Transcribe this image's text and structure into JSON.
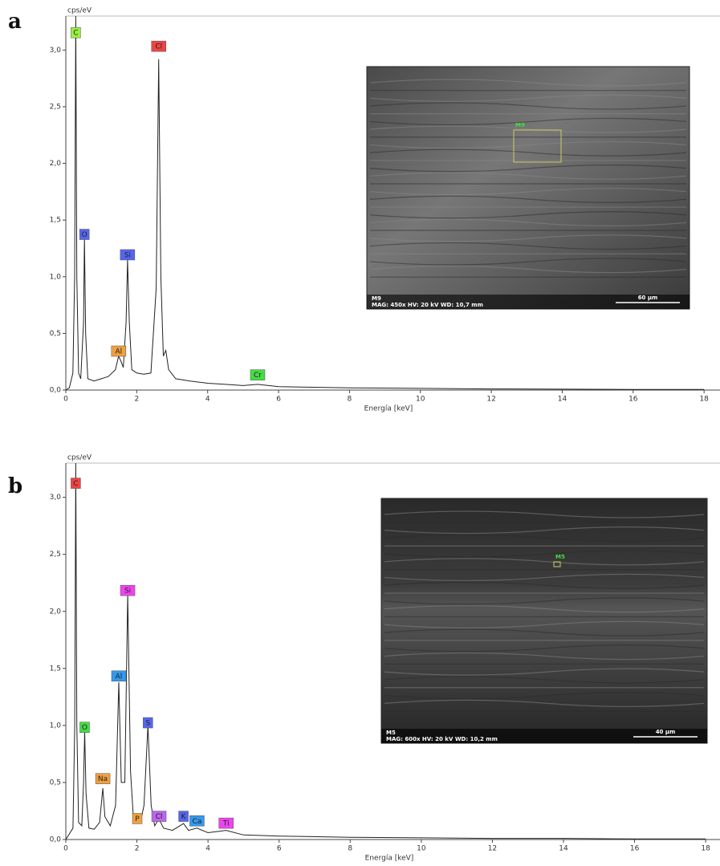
{
  "chart_data": [
    {
      "type": "line",
      "panel": "a",
      "y_label": "cps/eV",
      "x_label": "Energía [keV]",
      "color": "#222222",
      "xlim": [
        0,
        18.2
      ],
      "ylim": [
        0,
        3.3
      ],
      "xticks": [
        0,
        2,
        4,
        6,
        8,
        10,
        12,
        14,
        16,
        18
      ],
      "yticks": [
        {
          "value": 0,
          "label": "0,0"
        },
        {
          "value": 0.5,
          "label": "0,5"
        },
        {
          "value": 1,
          "label": "1,0"
        },
        {
          "value": 1.5,
          "label": "1,5"
        },
        {
          "value": 2,
          "label": "2,0"
        },
        {
          "value": 2.5,
          "label": "2,5"
        },
        {
          "value": 3,
          "label": "3,0"
        }
      ],
      "x": [
        0,
        0.1,
        0.2,
        0.25,
        0.28,
        0.31,
        0.36,
        0.42,
        0.5,
        0.525,
        0.56,
        0.62,
        0.8,
        1.0,
        1.2,
        1.4,
        1.49,
        1.56,
        1.62,
        1.7,
        1.74,
        1.79,
        1.86,
        2.0,
        2.2,
        2.4,
        2.55,
        2.62,
        2.68,
        2.75,
        2.82,
        2.9,
        3.1,
        3.5,
        4,
        4.5,
        5,
        5.41,
        6,
        7,
        8,
        10,
        12,
        14,
        16,
        18
      ],
      "values": [
        0,
        0.02,
        0.15,
        1.0,
        3.3,
        1.0,
        0.15,
        0.1,
        0.6,
        1.35,
        0.5,
        0.1,
        0.08,
        0.1,
        0.12,
        0.18,
        0.3,
        0.25,
        0.2,
        0.6,
        1.15,
        0.6,
        0.18,
        0.15,
        0.14,
        0.15,
        0.9,
        2.92,
        1.0,
        0.3,
        0.35,
        0.18,
        0.1,
        0.08,
        0.06,
        0.05,
        0.04,
        0.05,
        0.03,
        0.025,
        0.02,
        0.015,
        0.01,
        0.008,
        0.005,
        0.005
      ],
      "annotations": [
        {
          "text": "C",
          "x": 0.28,
          "y": 3.15,
          "color": "#99ee44"
        },
        {
          "text": "O",
          "x": 0.525,
          "y": 1.37,
          "color": "#5566ee"
        },
        {
          "text": "Si",
          "x": 1.74,
          "y": 1.19,
          "color": "#5566ee"
        },
        {
          "text": "Al",
          "x": 1.49,
          "y": 0.34,
          "color": "#f0a040"
        },
        {
          "text": "Cl",
          "x": 2.62,
          "y": 3.03,
          "color": "#ee4444"
        },
        {
          "text": "Cr",
          "x": 5.41,
          "y": 0.13,
          "color": "#44dd44"
        }
      ],
      "inset": {
        "site": "M9",
        "info": "MAG: 450x   HV: 20 kV   WD: 10,7 mm",
        "scale": "60 µm"
      }
    },
    {
      "type": "line",
      "panel": "b",
      "y_label": "cps/eV",
      "x_label": "Energía [keV]",
      "color": "#222222",
      "xlim": [
        0,
        18.2
      ],
      "ylim": [
        0,
        3.3
      ],
      "xticks": [
        0,
        2,
        4,
        6,
        8,
        10,
        12,
        14,
        16,
        18
      ],
      "yticks": [
        {
          "value": 0,
          "label": "0,0"
        },
        {
          "value": 0.5,
          "label": "0,5"
        },
        {
          "value": 1,
          "label": "1,0"
        },
        {
          "value": 1.5,
          "label": "1,5"
        },
        {
          "value": 2,
          "label": "2,0"
        },
        {
          "value": 2.5,
          "label": "2,5"
        },
        {
          "value": 3,
          "label": "3,0"
        }
      ],
      "x": [
        0,
        0.2,
        0.25,
        0.28,
        0.31,
        0.36,
        0.45,
        0.5,
        0.53,
        0.57,
        0.65,
        0.8,
        0.95,
        1.04,
        1.1,
        1.25,
        1.4,
        1.49,
        1.56,
        1.66,
        1.74,
        1.82,
        1.9,
        2.01,
        2.1,
        2.2,
        2.31,
        2.4,
        2.5,
        2.62,
        2.75,
        3.0,
        3.31,
        3.45,
        3.69,
        4.0,
        4.51,
        5,
        6,
        8,
        10,
        12,
        14,
        16,
        18
      ],
      "values": [
        0,
        0.1,
        1.0,
        3.3,
        1.0,
        0.15,
        0.12,
        0.5,
        0.95,
        0.4,
        0.1,
        0.09,
        0.15,
        0.45,
        0.2,
        0.12,
        0.3,
        1.38,
        0.5,
        0.5,
        2.15,
        0.6,
        0.2,
        0.18,
        0.15,
        0.3,
        1.0,
        0.3,
        0.12,
        0.18,
        0.1,
        0.08,
        0.14,
        0.08,
        0.1,
        0.06,
        0.08,
        0.04,
        0.03,
        0.02,
        0.015,
        0.01,
        0.01,
        0.005,
        0.005
      ],
      "annotations": [
        {
          "text": "C",
          "x": 0.28,
          "y": 3.12,
          "color": "#ee4444"
        },
        {
          "text": "O",
          "x": 0.53,
          "y": 0.98,
          "color": "#44dd44"
        },
        {
          "text": "Na",
          "x": 1.04,
          "y": 0.53,
          "color": "#f0a040"
        },
        {
          "text": "Al",
          "x": 1.49,
          "y": 1.43,
          "color": "#3399ee"
        },
        {
          "text": "Si",
          "x": 1.74,
          "y": 2.18,
          "color": "#ee44ee"
        },
        {
          "text": "S",
          "x": 2.31,
          "y": 1.02,
          "color": "#5566ee"
        },
        {
          "text": "P",
          "x": 2.01,
          "y": 0.18,
          "color": "#f0a040"
        },
        {
          "text": "Cl",
          "x": 2.62,
          "y": 0.2,
          "color": "#bb66ee"
        },
        {
          "text": "K",
          "x": 3.31,
          "y": 0.2,
          "color": "#5566ee"
        },
        {
          "text": "Ca",
          "x": 3.69,
          "y": 0.16,
          "color": "#3399ee"
        },
        {
          "text": "Ti",
          "x": 4.51,
          "y": 0.14,
          "color": "#ee44ee"
        }
      ],
      "inset": {
        "site": "M5",
        "info": "MAG: 600x   HV: 20 kV   WD: 10,2 mm",
        "scale": "40 µm"
      }
    }
  ]
}
